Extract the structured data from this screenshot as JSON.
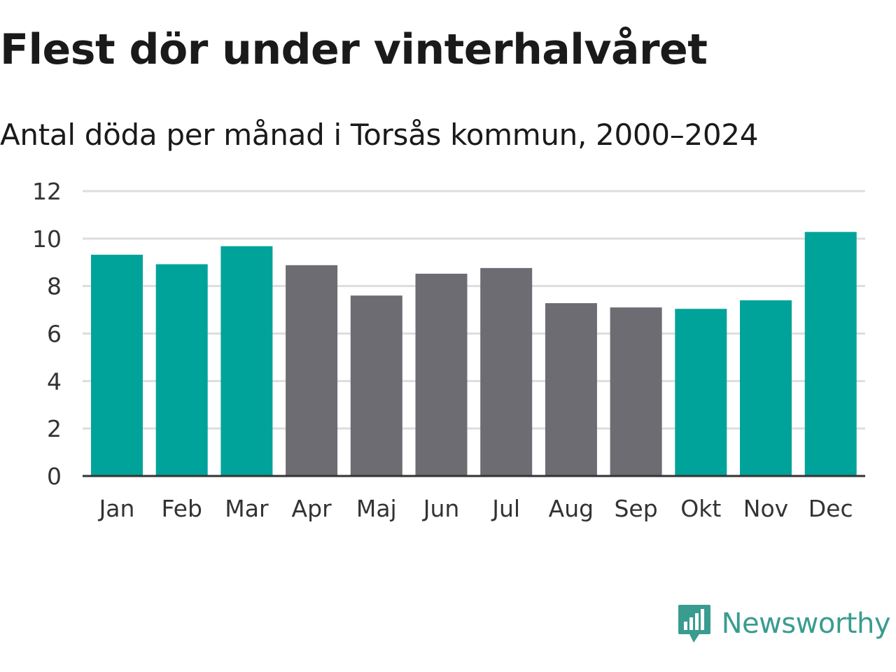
{
  "title": "Flest dör under vinterhalvåret",
  "subtitle": "Antal döda per månad i Torsås kommun, 2000–2024",
  "brand": {
    "name": "Newsworthy",
    "icon": "newsworthy-logo-icon",
    "color": "#3a9c8f"
  },
  "colors": {
    "winter": "#00a39a",
    "summer": "#6d6c72",
    "grid": "#dddddd",
    "axis": "#333333"
  },
  "chart_data": {
    "type": "bar",
    "title": "Flest dör under vinterhalvåret",
    "subtitle": "Antal döda per månad i Torsås kommun, 2000–2024",
    "xlabel": "",
    "ylabel": "",
    "ylim": [
      0,
      12
    ],
    "yticks": [
      0,
      2,
      4,
      6,
      8,
      10,
      12
    ],
    "grid": true,
    "categories": [
      "Jan",
      "Feb",
      "Mar",
      "Apr",
      "Maj",
      "Jun",
      "Jul",
      "Aug",
      "Sep",
      "Okt",
      "Nov",
      "Dec"
    ],
    "values": [
      9.32,
      8.92,
      9.68,
      8.88,
      7.6,
      8.52,
      8.76,
      7.28,
      7.1,
      7.04,
      7.4,
      10.28
    ],
    "highlight": [
      "winter",
      "winter",
      "winter",
      "summer",
      "summer",
      "summer",
      "summer",
      "summer",
      "summer",
      "winter",
      "winter",
      "winter"
    ]
  }
}
